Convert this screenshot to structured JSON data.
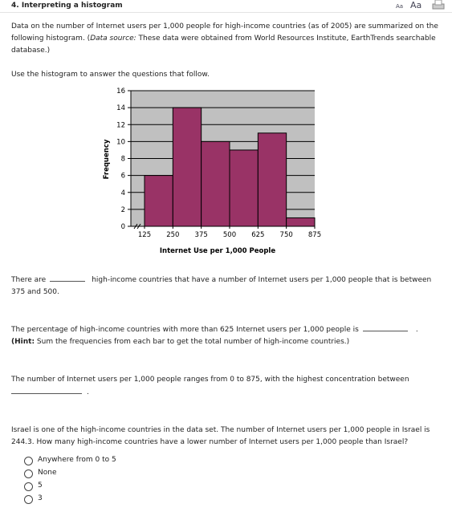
{
  "header": {
    "title": "4. Interpreting a histogram",
    "font_small": "Aa",
    "font_large": "Aa"
  },
  "intro": {
    "text_1": "Data on the number of Internet users per 1,000 people for high-income countries (as of 2005) are summarized on the following histogram. (",
    "source_label": "Data source:",
    "text_2": " These data were obtained from World Resources Institute, EarthTrends searchable database.)"
  },
  "instruction": "Use the histogram to answer the questions that follow.",
  "chart_data": {
    "type": "histogram",
    "bins": [
      125,
      250,
      375,
      500,
      625,
      750,
      875
    ],
    "values": [
      6,
      14,
      10,
      9,
      11,
      1
    ],
    "color": "#993366",
    "background": "#c0c0c0",
    "x_label": "Internet Use per 1,000 People",
    "y_label": "Frequency",
    "xlim": [
      125,
      875
    ],
    "xticks": [
      125,
      250,
      375,
      500,
      625,
      750,
      875
    ],
    "ylim": [
      0,
      16
    ],
    "yticks": [
      0,
      2,
      4,
      6,
      8,
      10,
      12,
      14,
      16
    ],
    "grid": true
  },
  "questions": [
    {
      "before": "There are",
      "after": "high-income countries that have a number of Internet users per 1,000 people that is between 375 and 500."
    },
    {
      "before": "The percentage of high-income countries with more than 625 Internet users per 1,000 people is",
      "after": ".",
      "hint_label": "(Hint:",
      "hint": " Sum the frequencies from each bar to get the total number of high-income countries.)"
    },
    {
      "before": "The number of Internet users per 1,000 people ranges from 0 to 875, with the highest concentration between",
      "after": "."
    },
    {
      "text": "Israel is one of the high-income countries in the data set. The number of Internet users per 1,000 people in Israel is 244.3. How many high-income countries have a lower number of Internet users per 1,000 people than Israel?",
      "options": [
        "Anywhere from 0 to 5",
        "None",
        "5",
        "3"
      ]
    }
  ]
}
